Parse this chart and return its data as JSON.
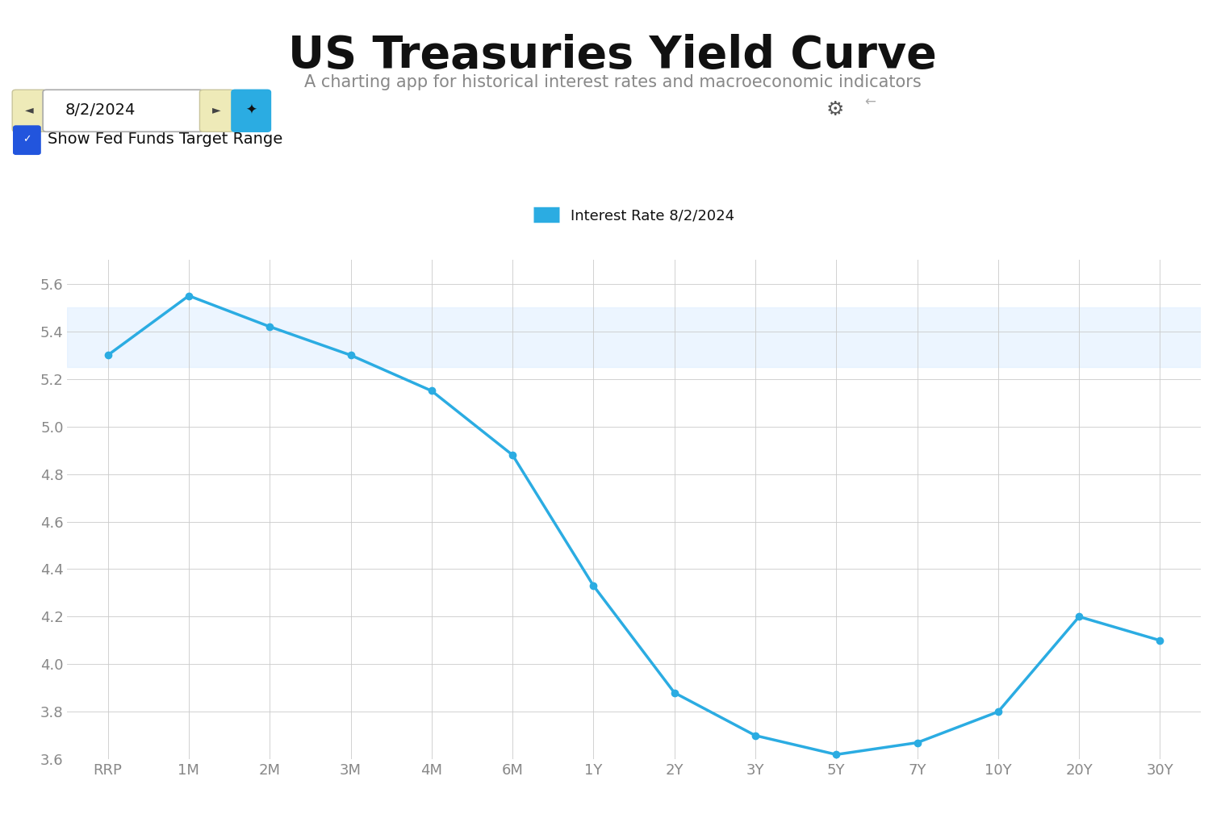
{
  "title": "US Treasuries Yield Curve",
  "subtitle": "A charting app for historical interest rates and macroeconomic indicators",
  "date_label": "8/2/2024",
  "legend_label": "Interest Rate 8/2/2024",
  "categories": [
    "RRP",
    "1M",
    "2M",
    "3M",
    "4M",
    "6M",
    "1Y",
    "2Y",
    "3Y",
    "5Y",
    "7Y",
    "10Y",
    "20Y",
    "30Y"
  ],
  "values": [
    5.3,
    5.55,
    5.42,
    5.3,
    5.15,
    4.88,
    4.33,
    3.88,
    3.7,
    3.62,
    3.67,
    3.8,
    4.2,
    4.1
  ],
  "line_color": "#2BACE2",
  "line_width": 2.5,
  "marker_color": "#2BACE2",
  "marker_size": 6,
  "background_color": "#ffffff",
  "grid_color": "#cccccc",
  "ylim": [
    3.6,
    5.7
  ],
  "yticks": [
    3.6,
    3.8,
    4.0,
    4.2,
    4.4,
    4.6,
    4.8,
    5.0,
    5.2,
    5.4,
    5.6
  ],
  "fed_band_lower": 5.25,
  "fed_band_upper": 5.5,
  "fed_band_color": "#ddeeff",
  "title_fontsize": 40,
  "subtitle_fontsize": 15,
  "axis_tick_fontsize": 13,
  "legend_fontsize": 13,
  "text_color_dark": "#111111",
  "text_color_mid": "#888888",
  "ui_prev_btn_color": "#eeeab8",
  "ui_pin_btn_color": "#2BACE2",
  "ui_checkbox_color": "#2255dd",
  "gear_color": "#555555",
  "arrow_color": "#aaaaaa"
}
